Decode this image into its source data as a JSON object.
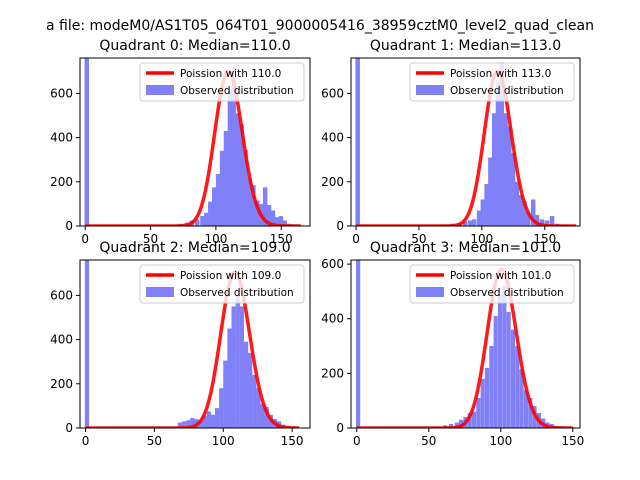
{
  "figure": {
    "suptitle": "a file: modeM0/AS1T05_064T01_9000005416_38959cztM0_level2_quad_clean"
  },
  "colors": {
    "hist": "#8080f8",
    "poisson": "#ff0000",
    "axis": "#000000",
    "background": "#ffffff"
  },
  "chart_data": [
    {
      "type": "bar",
      "title": "Quadrant 0: Median=110.0",
      "xlim": [
        -4,
        172
      ],
      "ylim": [
        0,
        760
      ],
      "xticks": [
        0,
        50,
        100,
        150
      ],
      "yticks": [
        0,
        200,
        400,
        600
      ],
      "grid": false,
      "legend_position": "top-right",
      "series": [
        {
          "name": "Poission with 110.0",
          "kind": "line",
          "lambda": 110.0,
          "color": "#ff0000",
          "x_range": [
            0,
            165
          ],
          "peak_y": 700
        },
        {
          "name": "Observed distribution",
          "kind": "histogram",
          "color": "#8080f8",
          "bin_width": 3.4,
          "bins": [
            [
              -0.5,
              760
            ],
            [
              68,
              5
            ],
            [
              72,
              10
            ],
            [
              76,
              15
            ],
            [
              80,
              25
            ],
            [
              84,
              30
            ],
            [
              88,
              45
            ],
            [
              91,
              60
            ],
            [
              94,
              110
            ],
            [
              97,
              175
            ],
            [
              100,
              235
            ],
            [
              103,
              340
            ],
            [
              106,
              430
            ],
            [
              109,
              610
            ],
            [
              112,
              720
            ],
            [
              115,
              510
            ],
            [
              118,
              460
            ],
            [
              121,
              345
            ],
            [
              124,
              220
            ],
            [
              127,
              185
            ],
            [
              130,
              115
            ],
            [
              133,
              100
            ],
            [
              136,
              175
            ],
            [
              139,
              95
            ],
            [
              142,
              70
            ],
            [
              145,
              40
            ],
            [
              148,
              45
            ],
            [
              151,
              25
            ],
            [
              154,
              10
            ],
            [
              157,
              8
            ]
          ]
        }
      ]
    },
    {
      "type": "bar",
      "title": "Quadrant 1: Median=113.0",
      "xlim": [
        -4,
        178
      ],
      "ylim": [
        0,
        760
      ],
      "xticks": [
        0,
        50,
        100,
        150
      ],
      "yticks": [
        0,
        200,
        400,
        600
      ],
      "grid": false,
      "legend_position": "top-right",
      "series": [
        {
          "name": "Poission with 113.0",
          "kind": "line",
          "lambda": 113.0,
          "color": "#ff0000",
          "x_range": [
            0,
            175
          ],
          "peak_y": 700
        },
        {
          "name": "Observed distribution",
          "kind": "histogram",
          "color": "#8080f8",
          "bin_width": 3.6,
          "bins": [
            [
              -0.5,
              760
            ],
            [
              70,
              5
            ],
            [
              75,
              10
            ],
            [
              80,
              12
            ],
            [
              85,
              20
            ],
            [
              89,
              25
            ],
            [
              92,
              30
            ],
            [
              96,
              70
            ],
            [
              99,
              120
            ],
            [
              102,
              190
            ],
            [
              105,
              310
            ],
            [
              108,
              510
            ],
            [
              111,
              650
            ],
            [
              114,
              740
            ],
            [
              117,
              510
            ],
            [
              120,
              450
            ],
            [
              123,
              330
            ],
            [
              126,
              200
            ],
            [
              129,
              140
            ],
            [
              132,
              115
            ],
            [
              135,
              60
            ],
            [
              139,
              120
            ],
            [
              142,
              50
            ],
            [
              146,
              30
            ],
            [
              150,
              25
            ],
            [
              154,
              45
            ],
            [
              158,
              10
            ],
            [
              163,
              5
            ]
          ]
        }
      ]
    },
    {
      "type": "bar",
      "title": "Quadrant 2: Median=109.0",
      "xlim": [
        -4,
        163
      ],
      "ylim": [
        0,
        760
      ],
      "xticks": [
        0,
        50,
        100,
        150
      ],
      "yticks": [
        0,
        200,
        400,
        600
      ],
      "grid": false,
      "legend_position": "top-right",
      "series": [
        {
          "name": "Poission with 109.0",
          "kind": "line",
          "lambda": 109.0,
          "color": "#ff0000",
          "x_range": [
            0,
            155
          ],
          "peak_y": 705
        },
        {
          "name": "Observed distribution",
          "kind": "histogram",
          "color": "#8080f8",
          "bin_width": 3.1,
          "bins": [
            [
              -0.5,
              760
            ],
            [
              67,
              25
            ],
            [
              70,
              30
            ],
            [
              73,
              35
            ],
            [
              76,
              45
            ],
            [
              79,
              40
            ],
            [
              82,
              35
            ],
            [
              85,
              55
            ],
            [
              88,
              75
            ],
            [
              91,
              60
            ],
            [
              94,
              90
            ],
            [
              97,
              180
            ],
            [
              100,
              305
            ],
            [
              103,
              450
            ],
            [
              106,
              550
            ],
            [
              109,
              600
            ],
            [
              112,
              550
            ],
            [
              115,
              390
            ],
            [
              118,
              340
            ],
            [
              121,
              240
            ],
            [
              124,
              180
            ],
            [
              127,
              110
            ],
            [
              130,
              95
            ],
            [
              133,
              60
            ],
            [
              136,
              40
            ],
            [
              139,
              30
            ],
            [
              142,
              15
            ],
            [
              145,
              10
            ],
            [
              148,
              5
            ]
          ]
        }
      ]
    },
    {
      "type": "bar",
      "title": "Quadrant 3: Median=101.0",
      "xlim": [
        -4,
        155
      ],
      "ylim": [
        0,
        615
      ],
      "xticks": [
        0,
        50,
        100,
        150
      ],
      "yticks": [
        0,
        200,
        400,
        600
      ],
      "grid": false,
      "legend_position": "top-right",
      "series": [
        {
          "name": "Poission with 101.0",
          "kind": "line",
          "lambda": 101.0,
          "color": "#ff0000",
          "x_range": [
            0,
            150
          ],
          "peak_y": 580
        },
        {
          "name": "Observed distribution",
          "kind": "histogram",
          "color": "#8080f8",
          "bin_width": 2.9,
          "bins": [
            [
              -0.5,
              615
            ],
            [
              55,
              5
            ],
            [
              60,
              10
            ],
            [
              64,
              15
            ],
            [
              68,
              20
            ],
            [
              71,
              30
            ],
            [
              74,
              40
            ],
            [
              77,
              55
            ],
            [
              80,
              60
            ],
            [
              83,
              110
            ],
            [
              86,
              180
            ],
            [
              89,
              220
            ],
            [
              92,
              300
            ],
            [
              95,
              410
            ],
            [
              98,
              490
            ],
            [
              101,
              520
            ],
            [
              104,
              425
            ],
            [
              107,
              360
            ],
            [
              110,
              300
            ],
            [
              113,
              215
            ],
            [
              116,
              140
            ],
            [
              119,
              110
            ],
            [
              122,
              80
            ],
            [
              125,
              55
            ],
            [
              128,
              35
            ],
            [
              131,
              20
            ],
            [
              134,
              15
            ],
            [
              137,
              8
            ],
            [
              140,
              5
            ]
          ]
        }
      ]
    }
  ]
}
